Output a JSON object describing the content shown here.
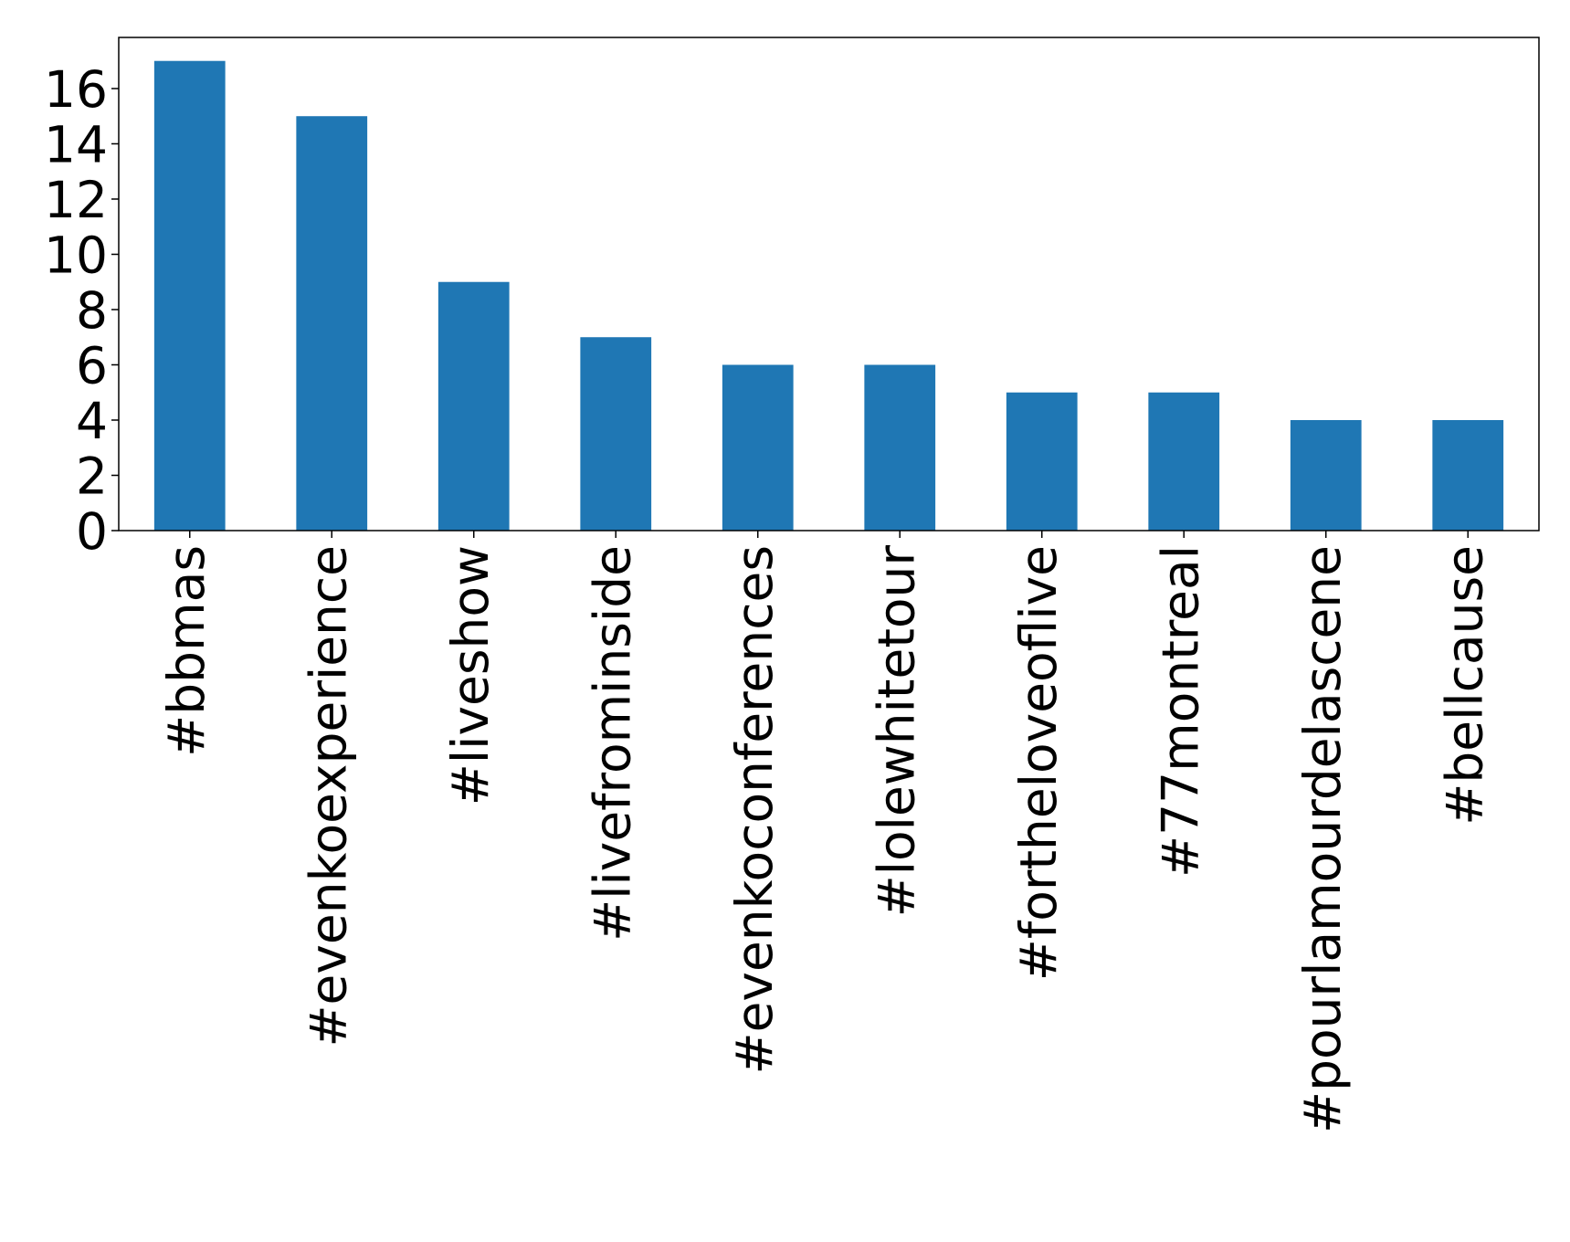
{
  "chart_data": {
    "type": "bar",
    "categories": [
      "#bbmas",
      "#evenkoexperience",
      "#liveshow",
      "#livefrominside",
      "#evenkoconferences",
      "#lolewhitetour",
      "#fortheloveoflive",
      "#77montreal",
      "#pourlamourdelascene",
      "#bellcause"
    ],
    "values": [
      17,
      15,
      9,
      7,
      6,
      6,
      5,
      5,
      4,
      4
    ],
    "color": "#1f77b4",
    "ylim": [
      0,
      17.85
    ],
    "yticks": [
      0,
      2,
      4,
      6,
      8,
      10,
      12,
      14,
      16
    ],
    "grid": false
  }
}
